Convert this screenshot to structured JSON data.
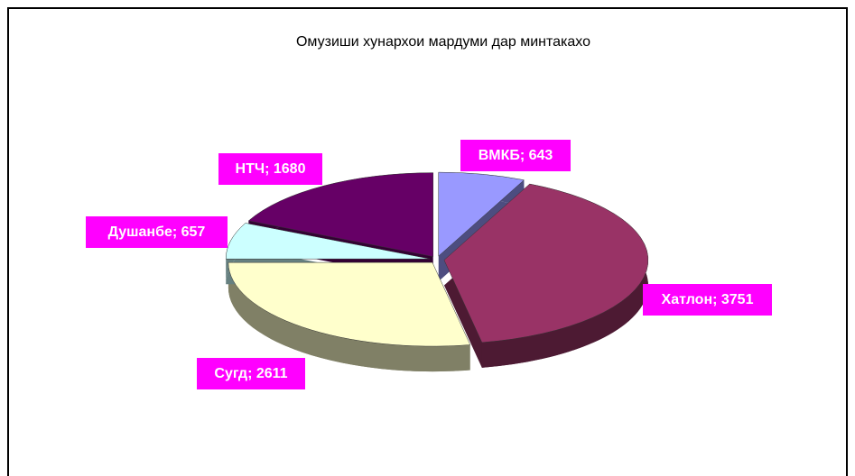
{
  "chart_data": {
    "type": "pie",
    "title": "Омузиши хунархои мардуми дар минтакахо",
    "values": [
      643,
      3751,
      2611,
      657,
      1680
    ],
    "value_labels": [
      "ВМКБ; 643",
      "Хатлон; 3751",
      "Сугд; 2611",
      "Душанбе; 657",
      "НТЧ; 1680"
    ],
    "colors": [
      "#9999ff",
      "#993366",
      "#ffffcc",
      "#ccffff",
      "#660066"
    ],
    "label_color": "#ff00ff"
  }
}
